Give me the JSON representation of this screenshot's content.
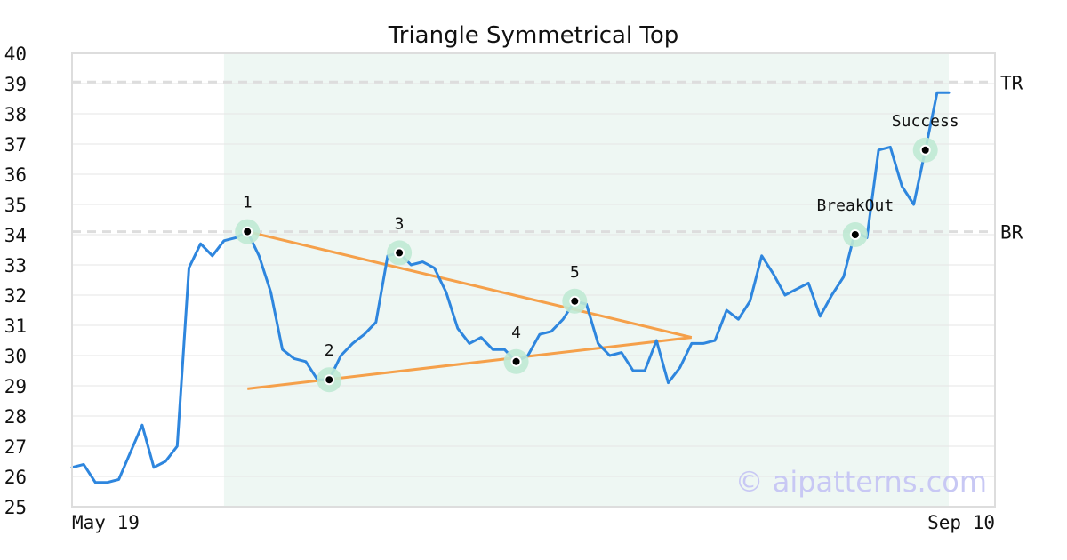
{
  "chart_data": {
    "type": "line",
    "title": "Triangle Symmetrical Top",
    "watermark": "© aipatterns.com",
    "x_tick_labels": [
      "May 19",
      "Sep 10"
    ],
    "ylim": [
      25,
      40
    ],
    "y_ticks": [
      25,
      26,
      27,
      28,
      29,
      30,
      31,
      32,
      33,
      34,
      35,
      36,
      37,
      38,
      39,
      40
    ],
    "grid": true,
    "colors": {
      "price": "#2e86de",
      "trendline": "#f5a04a",
      "highlight": "#eef7f3",
      "marker_halo": "#bfe9d4",
      "reference": "#dddddd"
    },
    "series": [
      {
        "values": [
          26.3,
          26.4,
          25.8,
          25.8,
          25.9,
          26.8,
          27.7,
          26.3,
          26.5,
          27.0,
          32.9,
          33.7,
          33.3,
          33.8,
          33.9,
          34.1,
          33.3,
          32.1,
          30.2,
          29.9,
          29.8,
          29.2,
          29.2,
          30.0,
          30.4,
          30.7,
          31.1,
          33.3,
          33.4,
          33.0,
          33.1,
          32.9,
          32.1,
          30.9,
          30.4,
          30.6,
          30.2,
          30.2,
          29.8,
          30.0,
          30.7,
          30.8,
          31.2,
          31.8,
          31.7,
          30.4,
          30.0,
          30.1,
          29.5,
          29.5,
          30.5,
          29.1,
          29.6,
          30.4,
          30.4,
          30.5,
          31.5,
          31.2,
          31.8,
          33.3,
          32.7,
          32.0,
          32.2,
          32.4,
          31.3,
          32.0,
          32.6,
          34.1,
          33.9,
          36.8,
          36.9,
          35.6,
          35.0,
          36.8,
          38.7,
          38.7
        ]
      }
    ],
    "highlight_range": [
      13,
      75
    ],
    "trendlines": [
      {
        "from": [
          15,
          34.1
        ],
        "to": [
          53,
          30.6
        ]
      },
      {
        "from": [
          15,
          28.9
        ],
        "to": [
          53,
          30.6
        ]
      }
    ],
    "reference_lines": [
      {
        "label": "TR",
        "value": 39.05
      },
      {
        "label": "BR",
        "value": 34.1
      }
    ],
    "points": [
      {
        "label": "1",
        "x": 15,
        "y": 34.1
      },
      {
        "label": "2",
        "x": 22,
        "y": 29.2
      },
      {
        "label": "3",
        "x": 28,
        "y": 33.4
      },
      {
        "label": "4",
        "x": 38,
        "y": 29.8
      },
      {
        "label": "5",
        "x": 43,
        "y": 31.8
      },
      {
        "label": "BreakOut",
        "x": 67,
        "y": 34.0
      },
      {
        "label": "Success",
        "x": 73,
        "y": 36.8
      }
    ]
  }
}
